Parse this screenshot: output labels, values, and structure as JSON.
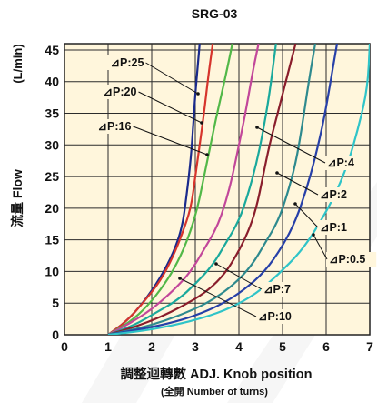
{
  "chart_data": {
    "type": "line",
    "title": "SRG-03",
    "xlabel": "調整迴轉數 ADJ. Knob position",
    "xlabel_sub": "(全開 Number of turns)",
    "ylabel": "流量 Flow",
    "yunit": "(L/min)",
    "xlim": [
      0,
      7
    ],
    "ylim": [
      0,
      46
    ],
    "x_ticks": [
      "0",
      "1",
      "2",
      "3",
      "4",
      "5",
      "6",
      "7"
    ],
    "y_ticks": [
      "0",
      "5",
      "10",
      "15",
      "20",
      "25",
      "30",
      "35",
      "40",
      "45"
    ],
    "grid": true,
    "series": [
      {
        "name": "⊿P:25",
        "color": "#1a2a8c",
        "points": [
          [
            1.0,
            0
          ],
          [
            1.4,
            2
          ],
          [
            1.8,
            5
          ],
          [
            2.2,
            9
          ],
          [
            2.5,
            13
          ],
          [
            2.7,
            17
          ],
          [
            2.8,
            22
          ],
          [
            2.9,
            28
          ],
          [
            2.95,
            33
          ],
          [
            3.0,
            38
          ],
          [
            3.05,
            42
          ],
          [
            3.1,
            46
          ]
        ]
      },
      {
        "name": "⊿P:20",
        "color": "#d6342c",
        "points": [
          [
            1.0,
            0
          ],
          [
            1.4,
            2
          ],
          [
            1.8,
            5
          ],
          [
            2.2,
            8.5
          ],
          [
            2.5,
            12.5
          ],
          [
            2.7,
            16
          ],
          [
            2.9,
            20
          ],
          [
            3.0,
            25
          ],
          [
            3.1,
            30
          ],
          [
            3.2,
            35
          ],
          [
            3.3,
            41
          ],
          [
            3.4,
            46
          ]
        ]
      },
      {
        "name": "⊿P:16",
        "color": "#52b848",
        "points": [
          [
            1.0,
            0
          ],
          [
            1.5,
            2
          ],
          [
            1.9,
            4.5
          ],
          [
            2.3,
            8
          ],
          [
            2.6,
            11.5
          ],
          [
            2.85,
            15.5
          ],
          [
            3.05,
            20
          ],
          [
            3.2,
            25
          ],
          [
            3.35,
            30
          ],
          [
            3.5,
            35
          ],
          [
            3.7,
            41
          ],
          [
            3.85,
            46
          ]
        ]
      },
      {
        "name": "⊿P:10",
        "color": "#c2479a",
        "points": [
          [
            1.0,
            0
          ],
          [
            1.5,
            1.8
          ],
          [
            2.0,
            4
          ],
          [
            2.5,
            7
          ],
          [
            2.9,
            10
          ],
          [
            3.2,
            13.5
          ],
          [
            3.5,
            17
          ],
          [
            3.7,
            21
          ],
          [
            3.85,
            25
          ],
          [
            4.0,
            30
          ],
          [
            4.15,
            35
          ],
          [
            4.3,
            41
          ],
          [
            4.45,
            46
          ]
        ]
      },
      {
        "name": "⊿P:7",
        "color": "#1aa99c",
        "points": [
          [
            1.0,
            0
          ],
          [
            1.6,
            1.5
          ],
          [
            2.1,
            3.5
          ],
          [
            2.6,
            5.5
          ],
          [
            3.0,
            8
          ],
          [
            3.4,
            11
          ],
          [
            3.7,
            14.5
          ],
          [
            4.0,
            18
          ],
          [
            4.2,
            22
          ],
          [
            4.4,
            27
          ],
          [
            4.55,
            32
          ],
          [
            4.7,
            38
          ],
          [
            4.85,
            46
          ]
        ]
      },
      {
        "name": "⊿P:4",
        "color": "#8a1e2c",
        "points": [
          [
            1.0,
            0
          ],
          [
            1.6,
            1.2
          ],
          [
            2.2,
            2.8
          ],
          [
            2.7,
            4.5
          ],
          [
            3.2,
            6.5
          ],
          [
            3.6,
            9
          ],
          [
            3.9,
            12
          ],
          [
            4.2,
            16
          ],
          [
            4.4,
            20
          ],
          [
            4.55,
            25
          ],
          [
            4.7,
            30
          ],
          [
            4.85,
            34
          ],
          [
            5.0,
            38
          ],
          [
            5.15,
            42
          ],
          [
            5.3,
            46
          ]
        ]
      },
      {
        "name": "⊿P:2",
        "color": "#2e8a8e",
        "points": [
          [
            1.0,
            0
          ],
          [
            1.7,
            1
          ],
          [
            2.3,
            2.2
          ],
          [
            2.9,
            3.8
          ],
          [
            3.4,
            5.5
          ],
          [
            3.9,
            8
          ],
          [
            4.3,
            11
          ],
          [
            4.6,
            14.5
          ],
          [
            4.9,
            18
          ],
          [
            5.1,
            22
          ],
          [
            5.3,
            27
          ],
          [
            5.45,
            33
          ],
          [
            5.6,
            40
          ],
          [
            5.75,
            46
          ]
        ]
      },
      {
        "name": "⊿P:1",
        "color": "#2740a8",
        "points": [
          [
            1.0,
            0
          ],
          [
            1.7,
            0.8
          ],
          [
            2.4,
            1.8
          ],
          [
            3.0,
            3
          ],
          [
            3.6,
            4.8
          ],
          [
            4.1,
            7
          ],
          [
            4.6,
            10
          ],
          [
            5.0,
            14
          ],
          [
            5.3,
            18
          ],
          [
            5.55,
            23
          ],
          [
            5.75,
            28
          ],
          [
            5.95,
            34
          ],
          [
            6.1,
            40
          ],
          [
            6.25,
            46
          ]
        ]
      },
      {
        "name": "⊿P:0.5",
        "color": "#2fc4c8",
        "points": [
          [
            1.0,
            0
          ],
          [
            1.8,
            0.6
          ],
          [
            2.5,
            1.5
          ],
          [
            3.2,
            2.7
          ],
          [
            3.8,
            4.2
          ],
          [
            4.4,
            6.5
          ],
          [
            4.9,
            9.5
          ],
          [
            5.4,
            13
          ],
          [
            5.8,
            17
          ],
          [
            6.2,
            22
          ],
          [
            6.5,
            27
          ],
          [
            6.75,
            33
          ],
          [
            6.95,
            39
          ],
          [
            7.0,
            46
          ]
        ]
      }
    ]
  }
}
